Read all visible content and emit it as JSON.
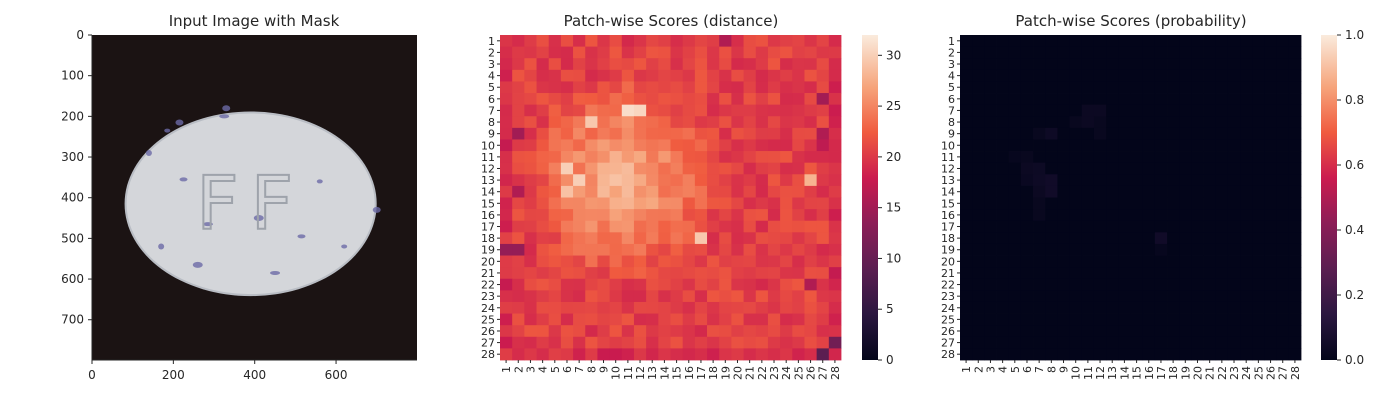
{
  "chart_data": [
    {
      "type": "image",
      "title": "Input Image with Mask",
      "xlim": [
        0,
        799
      ],
      "ylim": [
        0,
        799
      ],
      "xticks": [
        0,
        200,
        400,
        600
      ],
      "yticks": [
        0,
        100,
        200,
        300,
        400,
        500,
        600,
        700
      ],
      "object": {
        "shape": "ellipse",
        "center": [
          390,
          415
        ],
        "radii": [
          305,
          222
        ],
        "embossed_text": "FF",
        "colors": {
          "background": "#1b1313",
          "pill": "#d4d6da",
          "pill_edge": "#b9bdc4",
          "specks": "#6b6aa6",
          "emboss": "#9ea3ab"
        }
      }
    },
    {
      "type": "heatmap",
      "title": "Patch-wise Scores (distance)",
      "rows": 28,
      "cols": 28,
      "row_labels": [
        "1",
        "2",
        "3",
        "4",
        "5",
        "6",
        "7",
        "8",
        "9",
        "10",
        "11",
        "12",
        "13",
        "14",
        "15",
        "16",
        "17",
        "18",
        "19",
        "20",
        "21",
        "22",
        "23",
        "24",
        "25",
        "26",
        "27",
        "28"
      ],
      "col_labels": [
        "1",
        "2",
        "3",
        "4",
        "5",
        "6",
        "7",
        "8",
        "9",
        "10",
        "11",
        "12",
        "13",
        "14",
        "15",
        "16",
        "17",
        "18",
        "19",
        "20",
        "21",
        "22",
        "23",
        "24",
        "25",
        "26",
        "27",
        "28"
      ],
      "colorbar": {
        "min": 0,
        "max": 32,
        "ticks": [
          0,
          5,
          10,
          15,
          20,
          25,
          30
        ]
      },
      "value_model": {
        "base": 20.5,
        "peak": 28.5,
        "hotspot_center": [
          13,
          10.5
        ],
        "hotspot_radii": [
          9.5,
          8.5
        ],
        "extra_hot": [
          {
            "row": 7,
            "col": 11,
            "value": 31
          },
          {
            "row": 7,
            "col": 12,
            "value": 30.5
          },
          {
            "row": 8,
            "col": 8,
            "value": 29.5
          },
          {
            "row": 12,
            "col": 6,
            "value": 30
          },
          {
            "row": 13,
            "col": 7,
            "value": 30
          },
          {
            "row": 14,
            "col": 6,
            "value": 29
          },
          {
            "row": 13,
            "col": 26,
            "value": 28
          },
          {
            "row": 18,
            "col": 17,
            "value": 29.5
          }
        ],
        "low_cells": [
          {
            "row": 19,
            "col": 1,
            "value": 14
          },
          {
            "row": 19,
            "col": 2,
            "value": 14
          },
          {
            "row": 9,
            "col": 2,
            "value": 15
          },
          {
            "row": 1,
            "col": 19,
            "value": 16
          },
          {
            "row": 27,
            "col": 28,
            "value": 11
          },
          {
            "row": 28,
            "col": 27,
            "value": 9
          },
          {
            "row": 6,
            "col": 27,
            "value": 15
          },
          {
            "row": 14,
            "col": 2,
            "value": 16
          },
          {
            "row": 22,
            "col": 26,
            "value": 16
          },
          {
            "row": 9,
            "col": 27,
            "value": 16
          },
          {
            "row": 10,
            "col": 27,
            "value": 17
          }
        ]
      }
    },
    {
      "type": "heatmap",
      "title": "Patch-wise Scores (probability)",
      "rows": 28,
      "cols": 28,
      "row_labels": [
        "1",
        "2",
        "3",
        "4",
        "5",
        "6",
        "7",
        "8",
        "9",
        "10",
        "11",
        "12",
        "13",
        "14",
        "15",
        "16",
        "17",
        "18",
        "19",
        "20",
        "21",
        "22",
        "23",
        "24",
        "25",
        "26",
        "27",
        "28"
      ],
      "col_labels": [
        "1",
        "2",
        "3",
        "4",
        "5",
        "6",
        "7",
        "8",
        "9",
        "10",
        "11",
        "12",
        "13",
        "14",
        "15",
        "16",
        "17",
        "18",
        "19",
        "20",
        "21",
        "22",
        "23",
        "24",
        "25",
        "26",
        "27",
        "28"
      ],
      "colorbar": {
        "min": 0.0,
        "max": 1.0,
        "ticks": [
          "0.0",
          "0.2",
          "0.4",
          "0.6",
          "0.8",
          "1.0"
        ]
      },
      "background_value": 0.0,
      "nonzero_cells": [
        {
          "row": 7,
          "col": 11,
          "value": 0.03
        },
        {
          "row": 7,
          "col": 12,
          "value": 0.03
        },
        {
          "row": 8,
          "col": 10,
          "value": 0.02
        },
        {
          "row": 8,
          "col": 11,
          "value": 0.03
        },
        {
          "row": 8,
          "col": 12,
          "value": 0.02
        },
        {
          "row": 9,
          "col": 7,
          "value": 0.02
        },
        {
          "row": 9,
          "col": 8,
          "value": 0.04
        },
        {
          "row": 9,
          "col": 12,
          "value": 0.02
        },
        {
          "row": 11,
          "col": 5,
          "value": 0.015
        },
        {
          "row": 11,
          "col": 6,
          "value": 0.02
        },
        {
          "row": 12,
          "col": 6,
          "value": 0.03
        },
        {
          "row": 12,
          "col": 7,
          "value": 0.035
        },
        {
          "row": 13,
          "col": 6,
          "value": 0.025
        },
        {
          "row": 13,
          "col": 7,
          "value": 0.04
        },
        {
          "row": 13,
          "col": 8,
          "value": 0.05
        },
        {
          "row": 14,
          "col": 7,
          "value": 0.03
        },
        {
          "row": 14,
          "col": 8,
          "value": 0.05
        },
        {
          "row": 15,
          "col": 7,
          "value": 0.02
        },
        {
          "row": 16,
          "col": 7,
          "value": 0.02
        },
        {
          "row": 18,
          "col": 17,
          "value": 0.05
        },
        {
          "row": 19,
          "col": 17,
          "value": 0.015
        }
      ]
    }
  ]
}
